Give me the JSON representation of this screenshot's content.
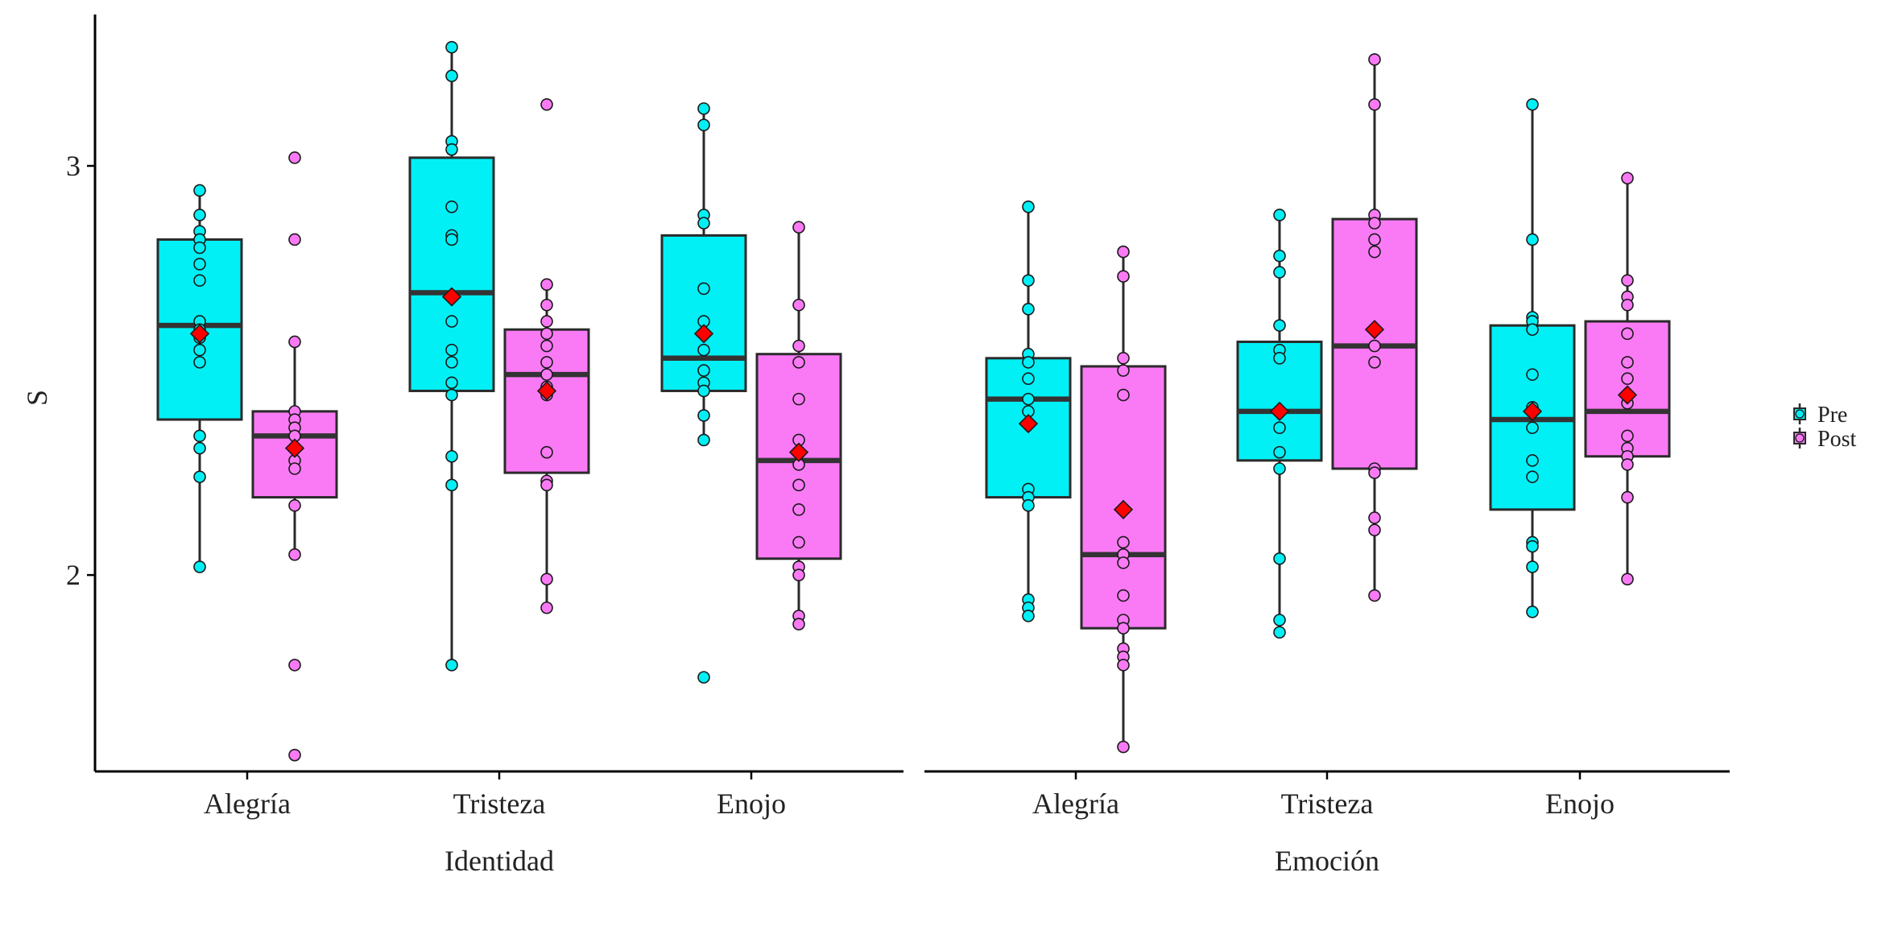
{
  "colors": {
    "pre": "#00F0F5",
    "post": "#FA7AF5",
    "mean": "#FF0000",
    "line": "#2a2a2a"
  },
  "chart_data": {
    "type": "boxplot",
    "title": "",
    "ylabel": "S",
    "ylim": [
      1.52,
      3.37
    ],
    "yticks": [
      2,
      3
    ],
    "legend": {
      "placement": "right",
      "entries": [
        {
          "label": "Pre",
          "key": "pre"
        },
        {
          "label": "Post",
          "key": "post"
        }
      ]
    },
    "panels": [
      {
        "xlabel": "Identidad",
        "categories": [
          "Alegría",
          "Tristeza",
          "Enojo"
        ],
        "groups": [
          {
            "category": "Alegría",
            "series": "pre",
            "q1": 2.38,
            "median": 2.61,
            "q3": 2.82,
            "whisker_low": 2.02,
            "whisker_high": 2.94,
            "mean": 2.59,
            "points": [
              2.94,
              2.88,
              2.84,
              2.82,
              2.8,
              2.76,
              2.72,
              2.62,
              2.6,
              2.58,
              2.55,
              2.52,
              2.34,
              2.31,
              2.24,
              2.02
            ]
          },
          {
            "category": "Alegría",
            "series": "post",
            "q1": 2.19,
            "median": 2.34,
            "q3": 2.4,
            "whisker_low": 2.05,
            "whisker_high": 2.58,
            "mean": 2.31,
            "points": [
              3.02,
              2.82,
              2.57,
              2.4,
              2.38,
              2.36,
              2.34,
              2.31,
              2.28,
              2.26,
              2.17,
              2.05,
              1.78,
              1.56
            ]
          },
          {
            "category": "Tristeza",
            "series": "pre",
            "q1": 2.45,
            "median": 2.69,
            "q3": 3.02,
            "whisker_low": 1.78,
            "whisker_high": 3.29,
            "mean": 2.68,
            "points": [
              3.29,
              3.22,
              3.06,
              3.04,
              2.9,
              2.83,
              2.82,
              2.62,
              2.55,
              2.52,
              2.47,
              2.44,
              2.29,
              2.22,
              1.78
            ]
          },
          {
            "category": "Tristeza",
            "series": "post",
            "q1": 2.25,
            "median": 2.49,
            "q3": 2.6,
            "whisker_low": 1.92,
            "whisker_high": 2.71,
            "mean": 2.45,
            "points": [
              3.15,
              2.71,
              2.66,
              2.62,
              2.59,
              2.56,
              2.52,
              2.49,
              2.46,
              2.44,
              2.3,
              2.23,
              2.22,
              1.99,
              1.92
            ]
          },
          {
            "category": "Enojo",
            "series": "pre",
            "q1": 2.45,
            "median": 2.53,
            "q3": 2.83,
            "whisker_low": 2.33,
            "whisker_high": 3.14,
            "mean": 2.59,
            "points": [
              3.14,
              3.1,
              2.88,
              2.86,
              2.7,
              2.62,
              2.55,
              2.5,
              2.47,
              2.45,
              2.39,
              2.33,
              1.75
            ]
          },
          {
            "category": "Enojo",
            "series": "post",
            "q1": 2.04,
            "median": 2.28,
            "q3": 2.54,
            "whisker_low": 1.88,
            "whisker_high": 2.85,
            "mean": 2.3,
            "points": [
              2.85,
              2.66,
              2.56,
              2.52,
              2.43,
              2.33,
              2.27,
              2.22,
              2.16,
              2.08,
              2.02,
              2.0,
              1.9,
              1.88
            ]
          }
        ]
      },
      {
        "xlabel": "Emoción",
        "categories": [
          "Alegría",
          "Tristeza",
          "Enojo"
        ],
        "groups": [
          {
            "category": "Alegría",
            "series": "pre",
            "q1": 2.19,
            "median": 2.43,
            "q3": 2.53,
            "whisker_low": 1.9,
            "whisker_high": 2.9,
            "mean": 2.37,
            "points": [
              2.9,
              2.72,
              2.65,
              2.54,
              2.52,
              2.48,
              2.43,
              2.4,
              2.37,
              2.21,
              2.19,
              2.17,
              1.94,
              1.92,
              1.9
            ]
          },
          {
            "category": "Alegría",
            "series": "post",
            "q1": 1.87,
            "median": 2.05,
            "q3": 2.51,
            "whisker_low": 1.58,
            "whisker_high": 2.79,
            "mean": 2.16,
            "points": [
              2.79,
              2.73,
              2.53,
              2.5,
              2.44,
              2.08,
              2.05,
              2.03,
              1.95,
              1.89,
              1.87,
              1.82,
              1.8,
              1.78,
              1.58
            ]
          },
          {
            "category": "Tristeza",
            "series": "pre",
            "q1": 2.28,
            "median": 2.4,
            "q3": 2.57,
            "whisker_low": 1.86,
            "whisker_high": 2.88,
            "mean": 2.4,
            "points": [
              2.88,
              2.78,
              2.74,
              2.61,
              2.55,
              2.53,
              2.4,
              2.36,
              2.3,
              2.26,
              2.04,
              1.89,
              1.86
            ]
          },
          {
            "category": "Tristeza",
            "series": "post",
            "q1": 2.26,
            "median": 2.56,
            "q3": 2.87,
            "whisker_low": 1.95,
            "whisker_high": 3.26,
            "mean": 2.6,
            "points": [
              3.26,
              3.15,
              2.88,
              2.86,
              2.82,
              2.79,
              2.6,
              2.56,
              2.52,
              2.26,
              2.25,
              2.14,
              2.11,
              1.95
            ]
          },
          {
            "category": "Enojo",
            "series": "pre",
            "q1": 2.16,
            "median": 2.38,
            "q3": 2.61,
            "whisker_low": 1.91,
            "whisker_high": 3.15,
            "mean": 2.4,
            "points": [
              3.15,
              2.82,
              2.63,
              2.62,
              2.6,
              2.49,
              2.41,
              2.36,
              2.28,
              2.24,
              2.08,
              2.07,
              2.02,
              1.91
            ]
          },
          {
            "category": "Enojo",
            "series": "post",
            "q1": 2.29,
            "median": 2.4,
            "q3": 2.62,
            "whisker_low": 1.99,
            "whisker_high": 2.97,
            "mean": 2.44,
            "points": [
              2.97,
              2.72,
              2.68,
              2.66,
              2.59,
              2.52,
              2.48,
              2.42,
              2.34,
              2.31,
              2.29,
              2.27,
              2.19,
              1.99
            ]
          }
        ]
      }
    ]
  }
}
